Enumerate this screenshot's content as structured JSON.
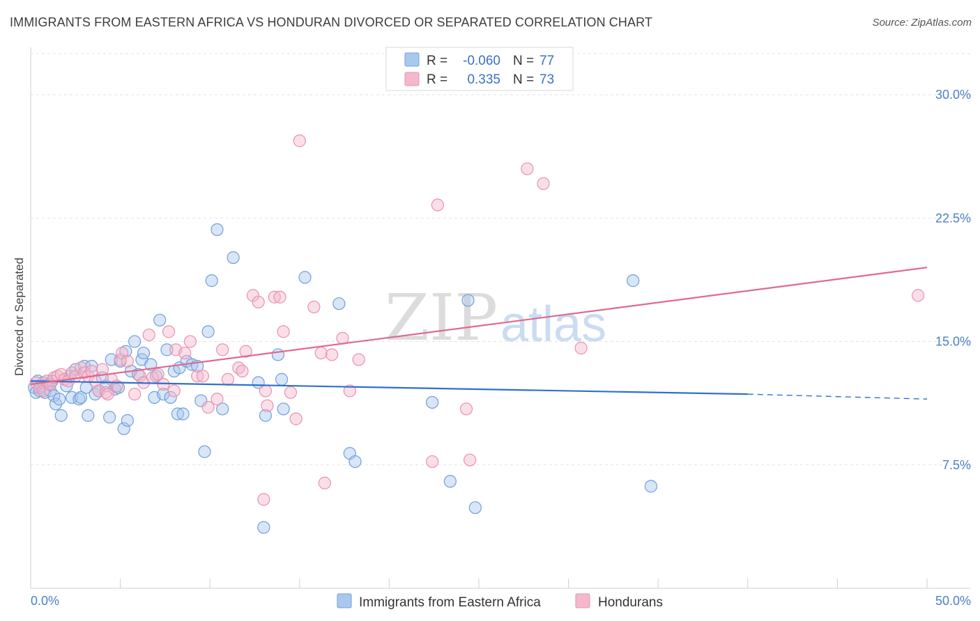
{
  "title": "IMMIGRANTS FROM EASTERN AFRICA VS HONDURAN DIVORCED OR SEPARATED CORRELATION CHART",
  "source": "Source: ZipAtlas.com",
  "watermark": {
    "zip": "ZIP",
    "atlas": "atlas"
  },
  "legend_top": {
    "rows": [
      {
        "r_label": "R =",
        "r_value": "-0.060",
        "n_label": "N =",
        "n_value": "77",
        "color": "#a8c8ee"
      },
      {
        "r_label": "R =",
        "r_value": "0.335",
        "n_label": "N =",
        "n_value": "73",
        "color": "#f4b8cc"
      }
    ]
  },
  "chart_data": {
    "type": "scatter",
    "title": "IMMIGRANTS FROM EASTERN AFRICA VS HONDURAN DIVORCED OR SEPARATED CORRELATION CHART",
    "xlabel": "",
    "ylabel": "Divorced or Separated",
    "xlim": [
      0,
      50
    ],
    "ylim": [
      0,
      32.5
    ],
    "x_tick_labels": [
      "0.0%",
      "50.0%"
    ],
    "y_ticks": [
      7.5,
      15.0,
      22.5,
      30.0
    ],
    "y_tick_labels": [
      "7.5%",
      "15.0%",
      "22.5%",
      "30.0%"
    ],
    "grid": true,
    "legend_position": "bottom",
    "series": [
      {
        "name": "Immigrants from Eastern Africa",
        "color": "#a8c8ee",
        "stroke": "#6f9fdb",
        "trend": {
          "x": [
            0,
            40,
            50
          ],
          "y": [
            12.6,
            11.8,
            11.5
          ],
          "color": "#2f6fce",
          "dashed_from": 40
        },
        "points": [
          [
            0.2,
            12.2
          ],
          [
            0.3,
            11.9
          ],
          [
            0.4,
            12.6
          ],
          [
            0.5,
            12.0
          ],
          [
            0.6,
            12.3
          ],
          [
            0.7,
            12.5
          ],
          [
            0.8,
            11.9
          ],
          [
            1.0,
            12.4
          ],
          [
            1.1,
            12.0
          ],
          [
            1.2,
            12.6
          ],
          [
            1.3,
            11.7
          ],
          [
            1.4,
            11.2
          ],
          [
            1.6,
            11.5
          ],
          [
            1.7,
            10.5
          ],
          [
            2.0,
            12.3
          ],
          [
            2.2,
            12.9
          ],
          [
            2.3,
            11.6
          ],
          [
            2.5,
            13.3
          ],
          [
            2.7,
            11.5
          ],
          [
            2.8,
            11.6
          ],
          [
            3.0,
            13.5
          ],
          [
            3.1,
            12.2
          ],
          [
            3.2,
            10.5
          ],
          [
            3.4,
            13.5
          ],
          [
            3.6,
            11.8
          ],
          [
            3.8,
            12.0
          ],
          [
            4.0,
            12.8
          ],
          [
            4.2,
            12.3
          ],
          [
            4.4,
            10.4
          ],
          [
            4.5,
            13.9
          ],
          [
            4.7,
            12.1
          ],
          [
            4.9,
            12.2
          ],
          [
            5.0,
            13.8
          ],
          [
            5.2,
            9.7
          ],
          [
            5.3,
            14.4
          ],
          [
            5.4,
            10.2
          ],
          [
            5.6,
            13.2
          ],
          [
            5.8,
            15.0
          ],
          [
            6.0,
            13.0
          ],
          [
            6.2,
            13.9
          ],
          [
            6.3,
            14.3
          ],
          [
            6.7,
            13.6
          ],
          [
            6.9,
            11.6
          ],
          [
            7.0,
            12.9
          ],
          [
            7.2,
            16.3
          ],
          [
            7.4,
            11.8
          ],
          [
            7.6,
            14.5
          ],
          [
            7.8,
            11.6
          ],
          [
            8.0,
            13.2
          ],
          [
            8.2,
            10.6
          ],
          [
            8.3,
            13.4
          ],
          [
            8.5,
            10.6
          ],
          [
            8.7,
            13.8
          ],
          [
            9.0,
            13.6
          ],
          [
            9.3,
            13.5
          ],
          [
            9.5,
            11.4
          ],
          [
            9.7,
            8.3
          ],
          [
            9.9,
            15.6
          ],
          [
            10.1,
            18.7
          ],
          [
            10.4,
            21.8
          ],
          [
            10.7,
            10.9
          ],
          [
            11.3,
            20.1
          ],
          [
            12.7,
            12.5
          ],
          [
            13.1,
            10.5
          ],
          [
            13.8,
            14.2
          ],
          [
            14.1,
            10.9
          ],
          [
            14.0,
            12.7
          ],
          [
            15.3,
            18.9
          ],
          [
            17.2,
            17.3
          ],
          [
            17.8,
            8.2
          ],
          [
            18.1,
            7.7
          ],
          [
            22.4,
            11.3
          ],
          [
            23.4,
            6.5
          ],
          [
            24.4,
            17.5
          ],
          [
            24.8,
            4.9
          ],
          [
            34.6,
            6.2
          ],
          [
            33.6,
            18.7
          ],
          [
            13.0,
            3.7
          ]
        ]
      },
      {
        "name": "Hondurans",
        "color": "#f4b8cc",
        "stroke": "#e991ad",
        "trend": {
          "x": [
            0,
            50
          ],
          "y": [
            12.4,
            19.5
          ],
          "color": "#e0688f"
        },
        "points": [
          [
            0.3,
            12.5
          ],
          [
            0.5,
            12.2
          ],
          [
            0.7,
            12.0
          ],
          [
            0.9,
            12.6
          ],
          [
            1.1,
            12.4
          ],
          [
            1.3,
            12.8
          ],
          [
            1.5,
            12.9
          ],
          [
            1.7,
            13.0
          ],
          [
            1.9,
            12.7
          ],
          [
            2.1,
            12.6
          ],
          [
            2.3,
            13.1
          ],
          [
            2.5,
            12.9
          ],
          [
            2.8,
            13.4
          ],
          [
            3.0,
            13.1
          ],
          [
            3.2,
            12.9
          ],
          [
            3.4,
            13.2
          ],
          [
            3.6,
            12.6
          ],
          [
            3.8,
            12.0
          ],
          [
            4.0,
            13.3
          ],
          [
            4.2,
            11.9
          ],
          [
            4.3,
            11.8
          ],
          [
            4.5,
            12.7
          ],
          [
            4.8,
            12.3
          ],
          [
            5.0,
            13.9
          ],
          [
            5.1,
            14.3
          ],
          [
            5.4,
            13.8
          ],
          [
            5.8,
            11.8
          ],
          [
            6.1,
            12.9
          ],
          [
            6.3,
            12.5
          ],
          [
            6.6,
            15.4
          ],
          [
            6.8,
            12.8
          ],
          [
            7.1,
            13.0
          ],
          [
            7.4,
            12.4
          ],
          [
            7.7,
            15.6
          ],
          [
            8.0,
            12.0
          ],
          [
            8.1,
            14.5
          ],
          [
            8.6,
            14.3
          ],
          [
            8.9,
            15.0
          ],
          [
            9.3,
            12.9
          ],
          [
            9.6,
            12.9
          ],
          [
            9.9,
            11.0
          ],
          [
            10.4,
            11.5
          ],
          [
            10.7,
            14.5
          ],
          [
            11.0,
            12.7
          ],
          [
            11.6,
            13.4
          ],
          [
            11.8,
            13.2
          ],
          [
            12.0,
            14.4
          ],
          [
            12.4,
            17.8
          ],
          [
            12.7,
            17.4
          ],
          [
            13.1,
            12.0
          ],
          [
            13.2,
            11.1
          ],
          [
            13.6,
            17.7
          ],
          [
            13.9,
            17.7
          ],
          [
            14.1,
            15.6
          ],
          [
            14.5,
            11.9
          ],
          [
            14.8,
            10.3
          ],
          [
            15.0,
            27.2
          ],
          [
            15.8,
            17.1
          ],
          [
            16.2,
            14.3
          ],
          [
            16.8,
            14.2
          ],
          [
            17.4,
            15.2
          ],
          [
            17.8,
            12.0
          ],
          [
            18.3,
            13.9
          ],
          [
            16.4,
            6.4
          ],
          [
            13.0,
            5.4
          ],
          [
            22.7,
            23.3
          ],
          [
            22.4,
            7.7
          ],
          [
            24.3,
            10.9
          ],
          [
            24.5,
            7.8
          ],
          [
            27.7,
            25.5
          ],
          [
            28.6,
            24.6
          ],
          [
            30.7,
            14.6
          ],
          [
            49.5,
            17.8
          ]
        ]
      }
    ]
  }
}
